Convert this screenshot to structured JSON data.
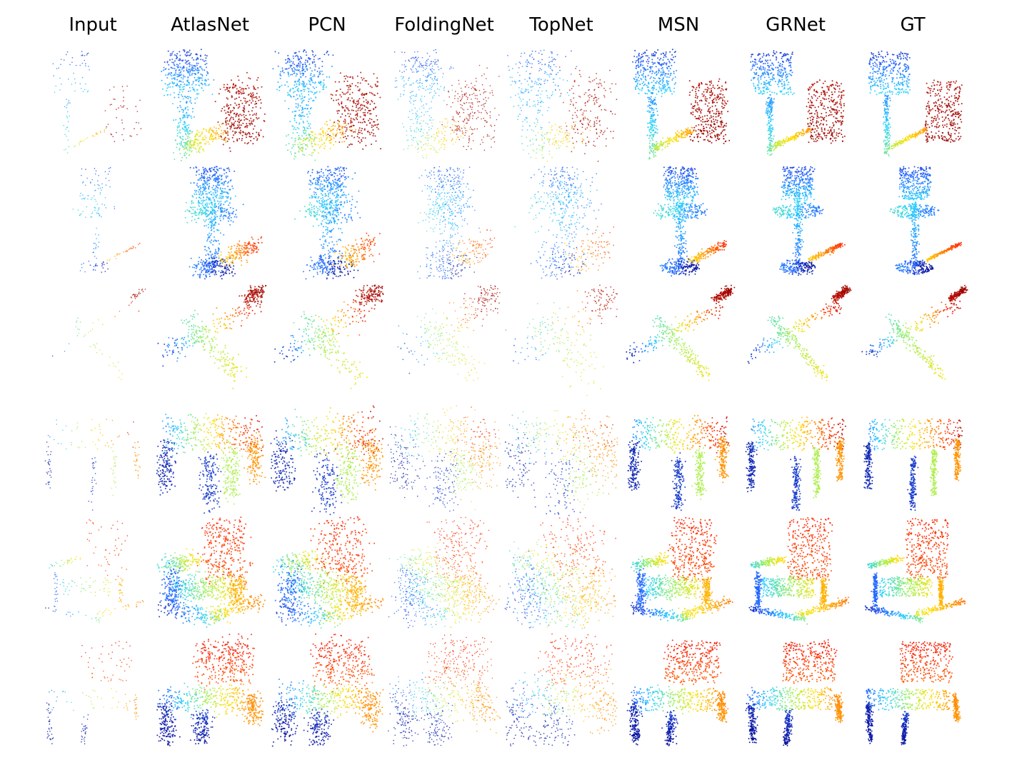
{
  "figure": {
    "columns": [
      {
        "key": "input",
        "label": "Input"
      },
      {
        "key": "atlasnet",
        "label": "AtlasNet"
      },
      {
        "key": "pcn",
        "label": "PCN"
      },
      {
        "key": "foldingnet",
        "label": "FoldingNet"
      },
      {
        "key": "topnet",
        "label": "TopNet"
      },
      {
        "key": "msn",
        "label": "MSN"
      },
      {
        "key": "grnet",
        "label": "GRNet"
      },
      {
        "key": "gt",
        "label": "GT"
      }
    ],
    "rows": [
      {
        "key": "lamp-with-panel",
        "depicts": "lamp"
      },
      {
        "key": "floor-lamp",
        "depicts": "lamp"
      },
      {
        "key": "airplane",
        "depicts": "airplane"
      },
      {
        "key": "table",
        "depicts": "table"
      },
      {
        "key": "rocking-chair",
        "depicts": "chair"
      },
      {
        "key": "chair",
        "depicts": "chair"
      }
    ],
    "colormap": [
      "#8b0000",
      "#ff2000",
      "#ff8c00",
      "#ffe000",
      "#9ef05a",
      "#20d0ff",
      "#2060ff",
      "#00008b"
    ]
  }
}
